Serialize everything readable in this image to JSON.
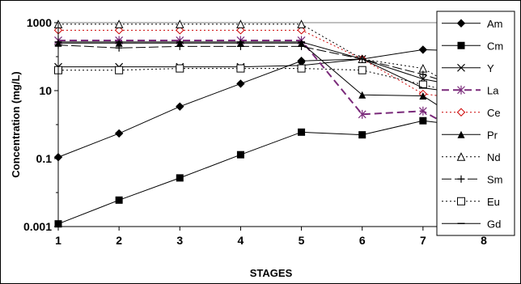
{
  "chart_data": {
    "type": "line",
    "xlabel": "STAGES",
    "ylabel": "Concentration (mg/L)",
    "yscale": "log",
    "ylim": [
      0.001,
      1000
    ],
    "xlim": [
      1,
      8
    ],
    "x": [
      1,
      2,
      3,
      4,
      5,
      6,
      7,
      8
    ],
    "x_ticks": [
      "1",
      "2",
      "3",
      "4",
      "5",
      "6",
      "7",
      "8"
    ],
    "y_ticks": [
      {
        "value": 1000,
        "label": "1000"
      },
      {
        "value": 10,
        "label": "10"
      },
      {
        "value": 0.1,
        "label": "0.1"
      },
      {
        "value": 0.001,
        "label": "0.001"
      }
    ],
    "grid": false,
    "legend_position": "right",
    "series": [
      {
        "name": "Am",
        "color": "#000000",
        "dash": "solid",
        "marker": "diamond-filled",
        "values": [
          0.11,
          0.55,
          3.4,
          16,
          75,
          85,
          160,
          140
        ]
      },
      {
        "name": "Cm",
        "color": "#000000",
        "dash": "solid",
        "marker": "square-filled",
        "values": [
          0.0012,
          0.006,
          0.027,
          0.13,
          0.6,
          0.5,
          1.3,
          0.8
        ]
      },
      {
        "name": "Y",
        "color": "#000000",
        "dash": "solid",
        "marker": "x",
        "values": [
          50,
          50,
          50,
          50,
          55,
          85,
          22,
          10
        ]
      },
      {
        "name": "La",
        "color": "#7a2a7a",
        "dash": "dash",
        "marker": "star",
        "values": [
          300,
          300,
          300,
          300,
          300,
          2,
          2.5,
          0.25
        ]
      },
      {
        "name": "Ce",
        "color": "#cc0000",
        "dash": "dot",
        "marker": "diamond-open",
        "values": [
          600,
          600,
          600,
          600,
          600,
          85,
          8,
          5
        ]
      },
      {
        "name": "Pr",
        "color": "#000000",
        "dash": "solid",
        "marker": "triangle-filled",
        "values": [
          250,
          250,
          250,
          250,
          250,
          7.5,
          7,
          0.5
        ]
      },
      {
        "name": "Nd",
        "color": "#000000",
        "dash": "dot",
        "marker": "triangle-open",
        "values": [
          900,
          900,
          900,
          900,
          900,
          85,
          45,
          4.5
        ]
      },
      {
        "name": "Sm",
        "color": "#000000",
        "dash": "longdash",
        "marker": "plus",
        "values": [
          220,
          180,
          200,
          200,
          200,
          85,
          30,
          8
        ]
      },
      {
        "name": "Eu",
        "color": "#000000",
        "dash": "dot",
        "marker": "square-open",
        "values": [
          40,
          40,
          45,
          45,
          45,
          40,
          15,
          5.5
        ]
      },
      {
        "name": "Gd",
        "color": "#000000",
        "dash": "solid",
        "marker": "dash",
        "values": [
          270,
          270,
          270,
          270,
          270,
          85,
          12,
          7
        ]
      }
    ]
  }
}
